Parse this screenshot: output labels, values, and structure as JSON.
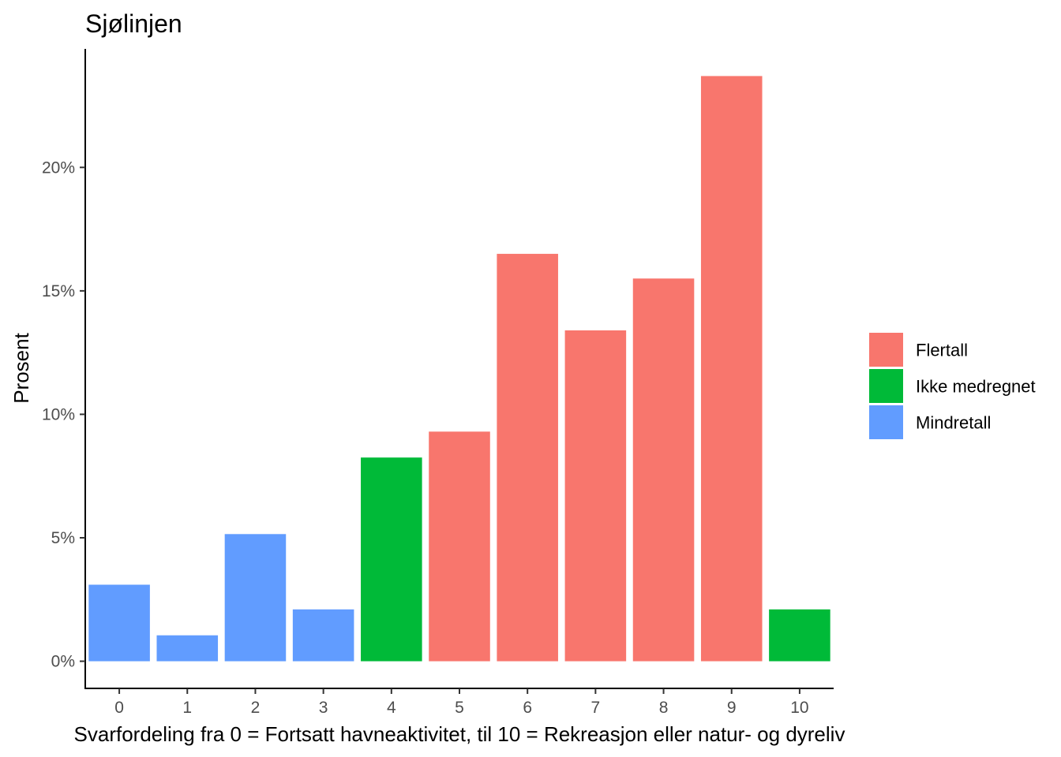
{
  "chart_data": {
    "type": "bar",
    "title": "Sjølinjen",
    "xlabel": "Svarfordeling fra 0 = Fortsatt havneaktivitet, til 10 = Rekreasjon eller natur- og dyreliv",
    "ylabel": "Prosent",
    "categories": [
      "0",
      "1",
      "2",
      "3",
      "4",
      "5",
      "6",
      "7",
      "8",
      "9",
      "10"
    ],
    "values": [
      3.1,
      1.05,
      5.15,
      2.1,
      8.25,
      9.3,
      16.5,
      13.4,
      15.5,
      23.7,
      2.1
    ],
    "groups": [
      "Mindretall",
      "Mindretall",
      "Mindretall",
      "Mindretall",
      "Ikke medregnet",
      "Flertall",
      "Flertall",
      "Flertall",
      "Flertall",
      "Flertall",
      "Ikke medregnet"
    ],
    "yticks": [
      0,
      5,
      10,
      15,
      20
    ],
    "ytick_labels": [
      "0%",
      "5%",
      "10%",
      "15%",
      "20%"
    ],
    "ylim": [
      -1.1,
      24.8
    ],
    "grid": false,
    "legend": {
      "position": "right",
      "entries": [
        {
          "name": "Flertall",
          "color": "#F8766D"
        },
        {
          "name": "Ikke medregnet",
          "color": "#00BA38"
        },
        {
          "name": "Mindretall",
          "color": "#619CFF"
        }
      ]
    }
  }
}
